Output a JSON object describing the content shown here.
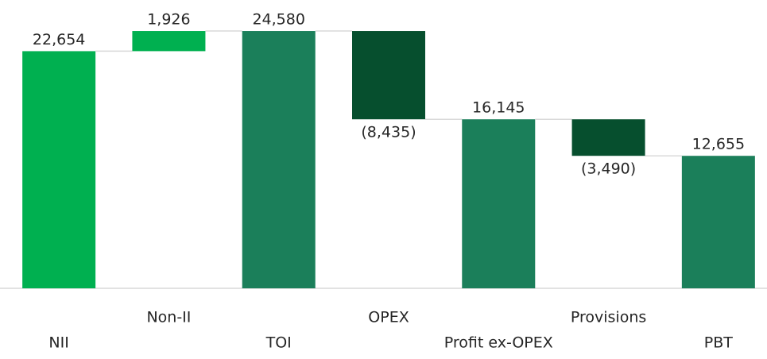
{
  "chart_data": {
    "type": "waterfall",
    "categories": [
      "NII",
      "Non-II",
      "TOI",
      "OPEX",
      "Profit ex-OPEX",
      "Provisions",
      "PBT"
    ],
    "values": [
      22654,
      1926,
      24580,
      -8435,
      16145,
      -3490,
      12655
    ],
    "value_labels": [
      "22,654",
      "1,926",
      "24,580",
      "(8,435)",
      "16,145",
      "(3,490)",
      "12,655"
    ],
    "colors": [
      "#00b050",
      "#00b050",
      "#1b7f5a",
      "#064f2e",
      "#1b7f5a",
      "#064f2e",
      "#1b7f5a"
    ],
    "ylim": [
      0,
      27000
    ]
  }
}
